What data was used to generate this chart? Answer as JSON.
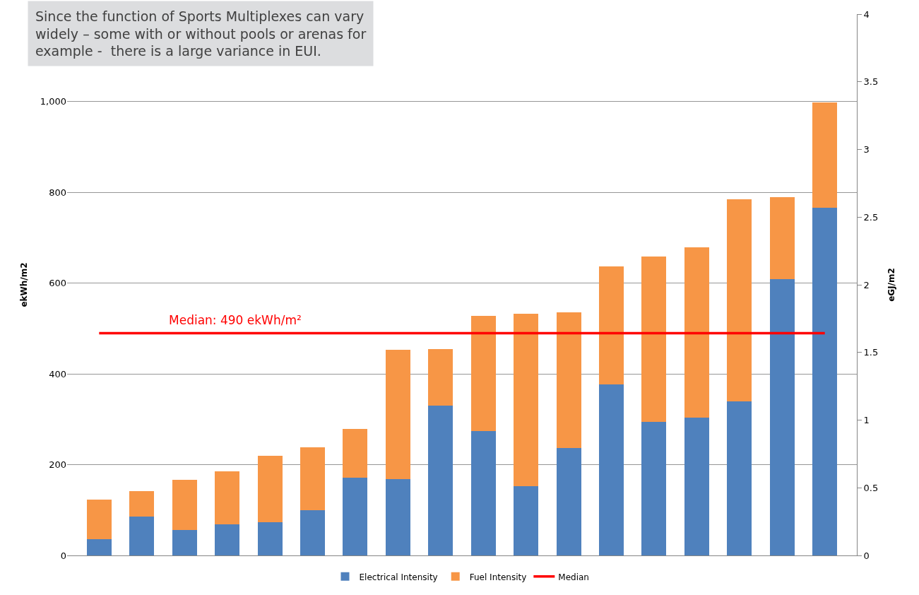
{
  "chart_data": {
    "type": "bar",
    "stacked": true,
    "categories": [
      null,
      null,
      null,
      null,
      null,
      null,
      null,
      null,
      null,
      null,
      null,
      null,
      null,
      null,
      null,
      null,
      null,
      null
    ],
    "series": [
      {
        "name": "Electrical Intensity",
        "color": "#4f81bd",
        "values": [
          36,
          85,
          56,
          68,
          73,
          100,
          172,
          168,
          330,
          274,
          152,
          236,
          377,
          295,
          304,
          340,
          609,
          766
        ]
      },
      {
        "name": "Fuel Intensity",
        "color": "#f79646",
        "values": [
          87,
          57,
          111,
          118,
          147,
          139,
          107,
          286,
          125,
          254,
          381,
          299,
          260,
          364,
          375,
          445,
          180,
          232
        ]
      },
      {
        "name": "Median",
        "type": "line",
        "color": "#ff0000",
        "values": [
          490,
          490,
          490,
          490,
          490,
          490,
          490,
          490,
          490,
          490,
          490,
          490,
          490,
          490,
          490,
          490,
          490,
          490
        ]
      }
    ],
    "ylabel": "ekWh/m2",
    "y2label": "eGJ/m2",
    "ylim": [
      0,
      1193
    ],
    "yticks": [
      0,
      200,
      400,
      600,
      800,
      {
        "value": 1000,
        "label": "1,000"
      }
    ],
    "y2lim": [
      0,
      4
    ],
    "y2ticks": [
      0,
      0.5,
      1,
      1.5,
      2,
      2.5,
      3,
      3.5,
      4
    ],
    "grid": "y",
    "legend": "bottom",
    "tick_labels": "y",
    "annotations": [
      {
        "text": "Median: 490 ekWh/m²",
        "y": 490
      },
      "Since the function of Sports Multiplexes can vary\nwidely – some with or without pools or arenas for\nexample -  there is a large variance in EUI."
    ]
  }
}
